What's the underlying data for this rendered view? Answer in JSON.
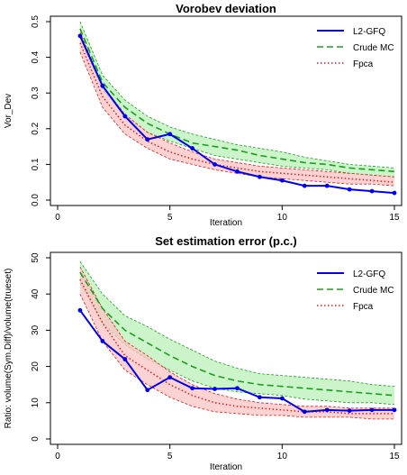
{
  "colors": {
    "l2gfq": "#0000ee",
    "crude_mc": "#1b9e1b",
    "crude_mc_band": "#b9f0b9",
    "fpca": "#e41a1c",
    "fpca_band": "#f9c4c4",
    "axis": "#000000"
  },
  "chart_data": [
    {
      "type": "line",
      "title": "Vorobev deviation",
      "xlabel": "Iteration",
      "ylabel": "Vor_Dev",
      "xlim": [
        0,
        15
      ],
      "ylim": [
        0,
        0.5
      ],
      "xticks": [
        0,
        5,
        10,
        15
      ],
      "yticks": [
        0.0,
        0.1,
        0.2,
        0.3,
        0.4,
        0.5
      ],
      "ytick_labels": [
        "0.0",
        "0.1",
        "0.2",
        "0.3",
        "0.4",
        "0.5"
      ],
      "grid": false,
      "legend": "top-right",
      "x": [
        1,
        2,
        3,
        4,
        5,
        6,
        7,
        8,
        9,
        10,
        11,
        12,
        13,
        14,
        15
      ],
      "series": [
        {
          "name": "L2-GFQ",
          "style": "solid-with-points",
          "color": "#0000ee",
          "values": [
            0.46,
            0.32,
            0.235,
            0.17,
            0.185,
            0.145,
            0.1,
            0.08,
            0.065,
            0.055,
            0.04,
            0.04,
            0.03,
            0.025,
            0.02
          ]
        },
        {
          "name": "Crude MC",
          "style": "dashed",
          "color": "#1b9e1b",
          "values": [
            0.48,
            0.33,
            0.26,
            0.215,
            0.185,
            0.16,
            0.15,
            0.14,
            0.125,
            0.115,
            0.105,
            0.1,
            0.09,
            0.085,
            0.08
          ],
          "band_lower": [
            0.455,
            0.31,
            0.235,
            0.19,
            0.165,
            0.145,
            0.125,
            0.115,
            0.105,
            0.095,
            0.09,
            0.085,
            0.075,
            0.07,
            0.065
          ],
          "band_upper": [
            0.5,
            0.35,
            0.28,
            0.235,
            0.205,
            0.185,
            0.17,
            0.155,
            0.145,
            0.135,
            0.12,
            0.11,
            0.1,
            0.095,
            0.09
          ]
        },
        {
          "name": "Fpca",
          "style": "dotted",
          "color": "#e41a1c",
          "values": [
            0.44,
            0.29,
            0.21,
            0.165,
            0.135,
            0.115,
            0.1,
            0.09,
            0.08,
            0.075,
            0.07,
            0.065,
            0.06,
            0.055,
            0.05
          ],
          "band_lower": [
            0.415,
            0.26,
            0.185,
            0.145,
            0.115,
            0.1,
            0.085,
            0.075,
            0.065,
            0.06,
            0.055,
            0.05,
            0.045,
            0.045,
            0.04
          ],
          "band_upper": [
            0.47,
            0.32,
            0.24,
            0.19,
            0.16,
            0.135,
            0.115,
            0.105,
            0.095,
            0.09,
            0.085,
            0.08,
            0.075,
            0.07,
            0.065
          ]
        }
      ]
    },
    {
      "type": "line",
      "title": "Set estimation error (p.c.)",
      "xlabel": "Iteration",
      "ylabel": "Ratio: volume(Sym.Diff)/volume(trueset)",
      "xlim": [
        0,
        15
      ],
      "ylim": [
        0,
        50
      ],
      "xticks": [
        0,
        5,
        10,
        15
      ],
      "yticks": [
        0,
        10,
        20,
        30,
        40,
        50
      ],
      "ytick_labels": [
        "0",
        "10",
        "20",
        "30",
        "40",
        "50"
      ],
      "grid": false,
      "legend": "top-right",
      "x": [
        1,
        2,
        3,
        4,
        5,
        6,
        7,
        8,
        9,
        10,
        11,
        12,
        13,
        14,
        15
      ],
      "series": [
        {
          "name": "L2-GFQ",
          "style": "solid-with-points",
          "color": "#0000ee",
          "values": [
            35.5,
            27,
            22,
            13.5,
            17,
            14,
            13.8,
            14,
            11.5,
            11.2,
            7.5,
            8,
            7.8,
            8,
            8
          ]
        },
        {
          "name": "Crude MC",
          "style": "dashed",
          "color": "#1b9e1b",
          "values": [
            46,
            36,
            30,
            26.5,
            23,
            20,
            17.5,
            16,
            15,
            14.5,
            14,
            13.5,
            13,
            12.5,
            12
          ],
          "band_lower": [
            43,
            32,
            26,
            22,
            19,
            16,
            14,
            13,
            12.5,
            12,
            11,
            10.5,
            10,
            10,
            9.5
          ],
          "band_upper": [
            49,
            40,
            34,
            31,
            27.5,
            24.5,
            21.5,
            19.5,
            18,
            17.5,
            17,
            16.5,
            16,
            15,
            14.5
          ]
        },
        {
          "name": "Fpca",
          "style": "dotted",
          "color": "#e41a1c",
          "values": [
            44,
            32,
            23,
            19,
            15,
            12,
            10,
            9,
            8.5,
            8,
            7.5,
            7.5,
            7,
            7,
            7
          ],
          "band_lower": [
            40,
            27,
            19,
            15,
            11.5,
            9,
            7.5,
            7,
            6.5,
            6.5,
            6,
            6,
            6,
            5.5,
            5.5
          ],
          "band_upper": [
            47.5,
            36,
            27,
            23,
            18.5,
            15,
            12.5,
            11,
            10,
            9.5,
            9,
            9,
            8.5,
            8.5,
            8.5
          ]
        }
      ]
    }
  ]
}
